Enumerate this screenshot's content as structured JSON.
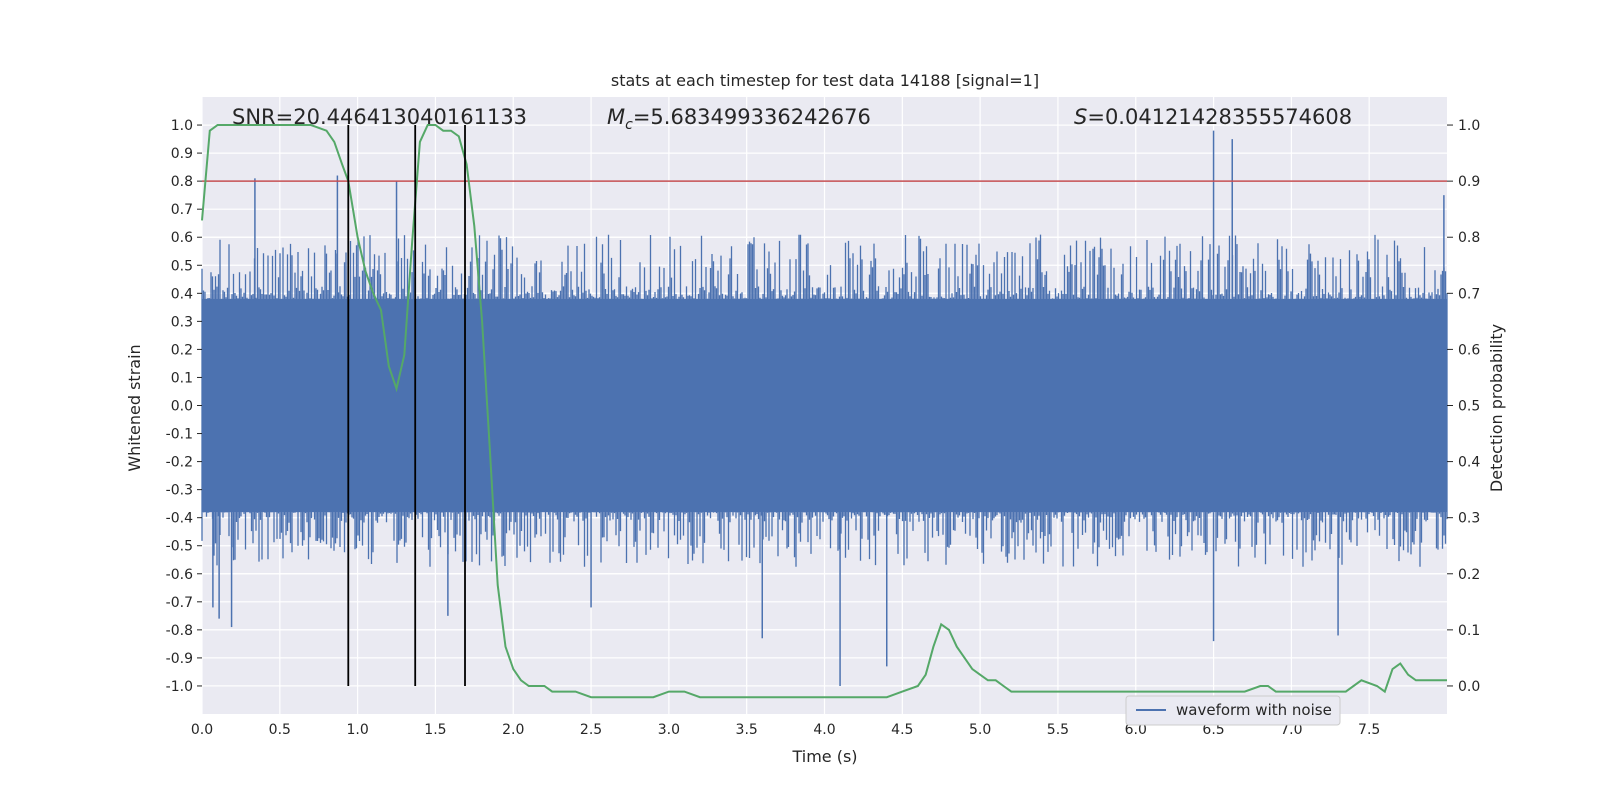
{
  "chart_data": {
    "type": "line",
    "title": "stats at each timestep for test data 14188 [signal=1]",
    "xlabel": "Time (s)",
    "ylabel_left": "Whitened strain",
    "ylabel_right": "Detection probability",
    "xlim": [
      0.0,
      8.0
    ],
    "ylim_left": [
      -1.1,
      1.1
    ],
    "ylim_right": [
      -0.05,
      1.05
    ],
    "grid": true,
    "legend_position": "lower-right",
    "x_ticks": [
      "0.0",
      "0.5",
      "1.0",
      "1.5",
      "2.0",
      "2.5",
      "3.0",
      "3.5",
      "4.0",
      "4.5",
      "5.0",
      "5.5",
      "6.0",
      "6.5",
      "7.0",
      "7.5"
    ],
    "y_left_ticks": [
      "1.0",
      "0.9",
      "0.8",
      "0.7",
      "0.6",
      "0.5",
      "0.4",
      "0.3",
      "0.2",
      "0.1",
      "0.0",
      "-0.1",
      "-0.2",
      "-0.3",
      "-0.4",
      "-0.5",
      "-0.6",
      "-0.7",
      "-0.8",
      "-0.9",
      "-1.0"
    ],
    "y_right_ticks": [
      "1.0",
      "0.9",
      "0.8",
      "0.7",
      "0.6",
      "0.5",
      "0.4",
      "0.3",
      "0.2",
      "0.1",
      "0.0"
    ],
    "annotations": {
      "snr": "SNR=20.446413040161133",
      "mc_symbol": "M",
      "mc_subscript": "c",
      "mc_value": "=5.683499336242676",
      "s_symbol": "S",
      "s_value": "=0.04121428355574608"
    },
    "threshold": {
      "value_right_axis": 0.9,
      "color": "#c44e52"
    },
    "vertical_markers": [
      0.94,
      1.37,
      1.69
    ],
    "marker_range_left": [
      -1.0,
      1.0
    ],
    "series": [
      {
        "name": "waveform with noise",
        "color": "#4c72b0",
        "axis": "left",
        "description_envelope": {
          "dense_band": [
            -0.38,
            0.38
          ],
          "typical_peaks_pos": 0.58,
          "typical_peaks_neg": -0.55,
          "spikes": [
            {
              "x": 0.07,
              "y": -0.72
            },
            {
              "x": 0.11,
              "y": -0.76
            },
            {
              "x": 0.19,
              "y": -0.79
            },
            {
              "x": 0.34,
              "y": 0.81
            },
            {
              "x": 0.87,
              "y": 0.82
            },
            {
              "x": 1.25,
              "y": 0.8
            },
            {
              "x": 1.58,
              "y": -0.75
            },
            {
              "x": 2.5,
              "y": -0.72
            },
            {
              "x": 3.6,
              "y": -0.83
            },
            {
              "x": 4.1,
              "y": -1.0
            },
            {
              "x": 4.4,
              "y": -0.93
            },
            {
              "x": 6.5,
              "y": 0.98
            },
            {
              "x": 6.62,
              "y": 0.95
            },
            {
              "x": 6.5,
              "y": -0.84
            },
            {
              "x": 7.3,
              "y": -0.82
            },
            {
              "x": 7.98,
              "y": 0.75
            }
          ]
        }
      },
      {
        "name": "",
        "color": "#55a868",
        "axis": "right",
        "x": [
          0.0,
          0.05,
          0.1,
          0.15,
          0.2,
          0.3,
          0.4,
          0.5,
          0.6,
          0.7,
          0.8,
          0.85,
          0.9,
          0.94,
          1.0,
          1.05,
          1.1,
          1.15,
          1.2,
          1.25,
          1.3,
          1.35,
          1.4,
          1.45,
          1.5,
          1.55,
          1.6,
          1.65,
          1.7,
          1.75,
          1.8,
          1.85,
          1.9,
          1.95,
          2.0,
          2.05,
          2.1,
          2.15,
          2.2,
          2.25,
          2.3,
          2.4,
          2.5,
          2.6,
          2.7,
          2.8,
          2.9,
          3.0,
          3.1,
          3.2,
          3.3,
          3.4,
          3.5,
          3.6,
          3.7,
          3.8,
          3.9,
          4.0,
          4.1,
          4.2,
          4.3,
          4.4,
          4.5,
          4.6,
          4.65,
          4.7,
          4.75,
          4.8,
          4.85,
          4.9,
          4.95,
          5.0,
          5.05,
          5.1,
          5.15,
          5.2,
          5.3,
          5.5,
          6.0,
          6.5,
          6.6,
          6.7,
          6.8,
          6.85,
          6.9,
          7.0,
          7.2,
          7.35,
          7.45,
          7.55,
          7.6,
          7.65,
          7.7,
          7.75,
          7.8,
          7.9,
          8.0
        ],
        "values": [
          0.83,
          0.99,
          1.0,
          1.0,
          1.0,
          1.0,
          1.0,
          1.0,
          1.0,
          1.0,
          0.99,
          0.97,
          0.93,
          0.9,
          0.8,
          0.74,
          0.7,
          0.67,
          0.57,
          0.53,
          0.59,
          0.79,
          0.97,
          1.0,
          1.0,
          0.99,
          0.99,
          0.98,
          0.93,
          0.82,
          0.65,
          0.42,
          0.18,
          0.07,
          0.03,
          0.01,
          0.0,
          0.0,
          0.0,
          -0.01,
          -0.01,
          -0.01,
          -0.02,
          -0.02,
          -0.02,
          -0.02,
          -0.02,
          -0.01,
          -0.01,
          -0.02,
          -0.02,
          -0.02,
          -0.02,
          -0.02,
          -0.02,
          -0.02,
          -0.02,
          -0.02,
          -0.02,
          -0.02,
          -0.02,
          -0.02,
          -0.01,
          0.0,
          0.02,
          0.07,
          0.11,
          0.1,
          0.07,
          0.05,
          0.03,
          0.02,
          0.01,
          0.01,
          0.0,
          -0.01,
          -0.01,
          -0.01,
          -0.01,
          -0.01,
          -0.01,
          -0.01,
          0.0,
          0.0,
          -0.01,
          -0.01,
          -0.01,
          -0.01,
          0.01,
          0.0,
          -0.01,
          0.03,
          0.04,
          0.02,
          0.01,
          0.01,
          0.01
        ],
        "comment_ignore": ""
      }
    ]
  }
}
